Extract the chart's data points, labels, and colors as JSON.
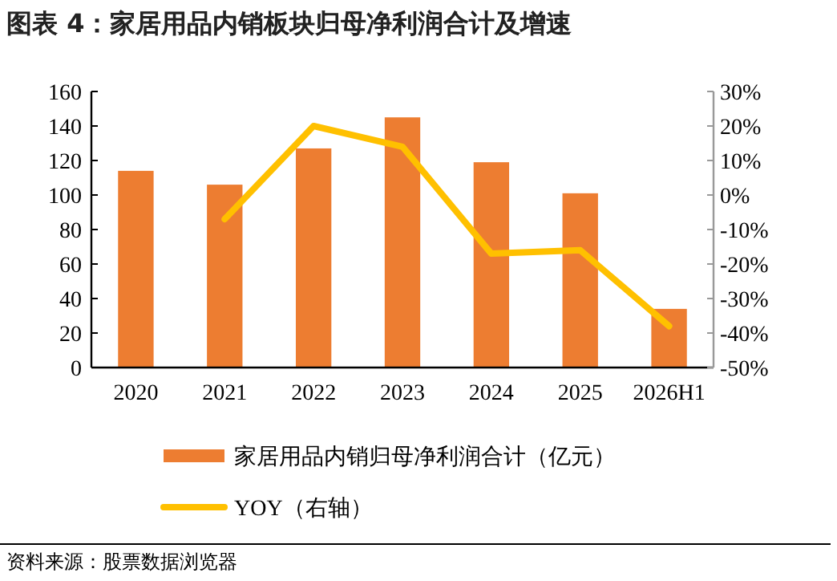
{
  "chart_data": {
    "type": "bar",
    "title": "图表 4：家居用品内销板块归母净利润合计及增速",
    "categories": [
      "2020",
      "2021",
      "2022",
      "2023",
      "2024",
      "2025",
      "2026H1"
    ],
    "series": [
      {
        "name": "家居用品内销归母净利润合计（亿元）",
        "color": "#ed7d31",
        "values": [
          114,
          106,
          127,
          145,
          119,
          101,
          34
        ]
      },
      {
        "name": "YOY（右轴）",
        "type": "line",
        "axis": "y2",
        "color": "#ffc000",
        "values": [
          null,
          -7,
          20,
          14,
          -17,
          -16,
          -38
        ]
      }
    ],
    "ylim": [
      0,
      160
    ],
    "yticks": [
      0,
      20,
      40,
      60,
      80,
      100,
      120,
      140,
      160
    ],
    "y2lim": [
      -50,
      30
    ],
    "y2ticks": [
      {
        "value": -50,
        "label": "-50%"
      },
      {
        "value": -40,
        "label": "-40%"
      },
      {
        "value": -30,
        "label": "-30%"
      },
      {
        "value": -20,
        "label": "-20%"
      },
      {
        "value": -10,
        "label": "-10%"
      },
      {
        "value": 0,
        "label": "0%"
      },
      {
        "value": 10,
        "label": "10%"
      },
      {
        "value": 20,
        "label": "20%"
      },
      {
        "value": 30,
        "label": "30%"
      }
    ],
    "legend": "bottom",
    "annotations": [
      "资料来源：股票数据浏览器"
    ]
  }
}
